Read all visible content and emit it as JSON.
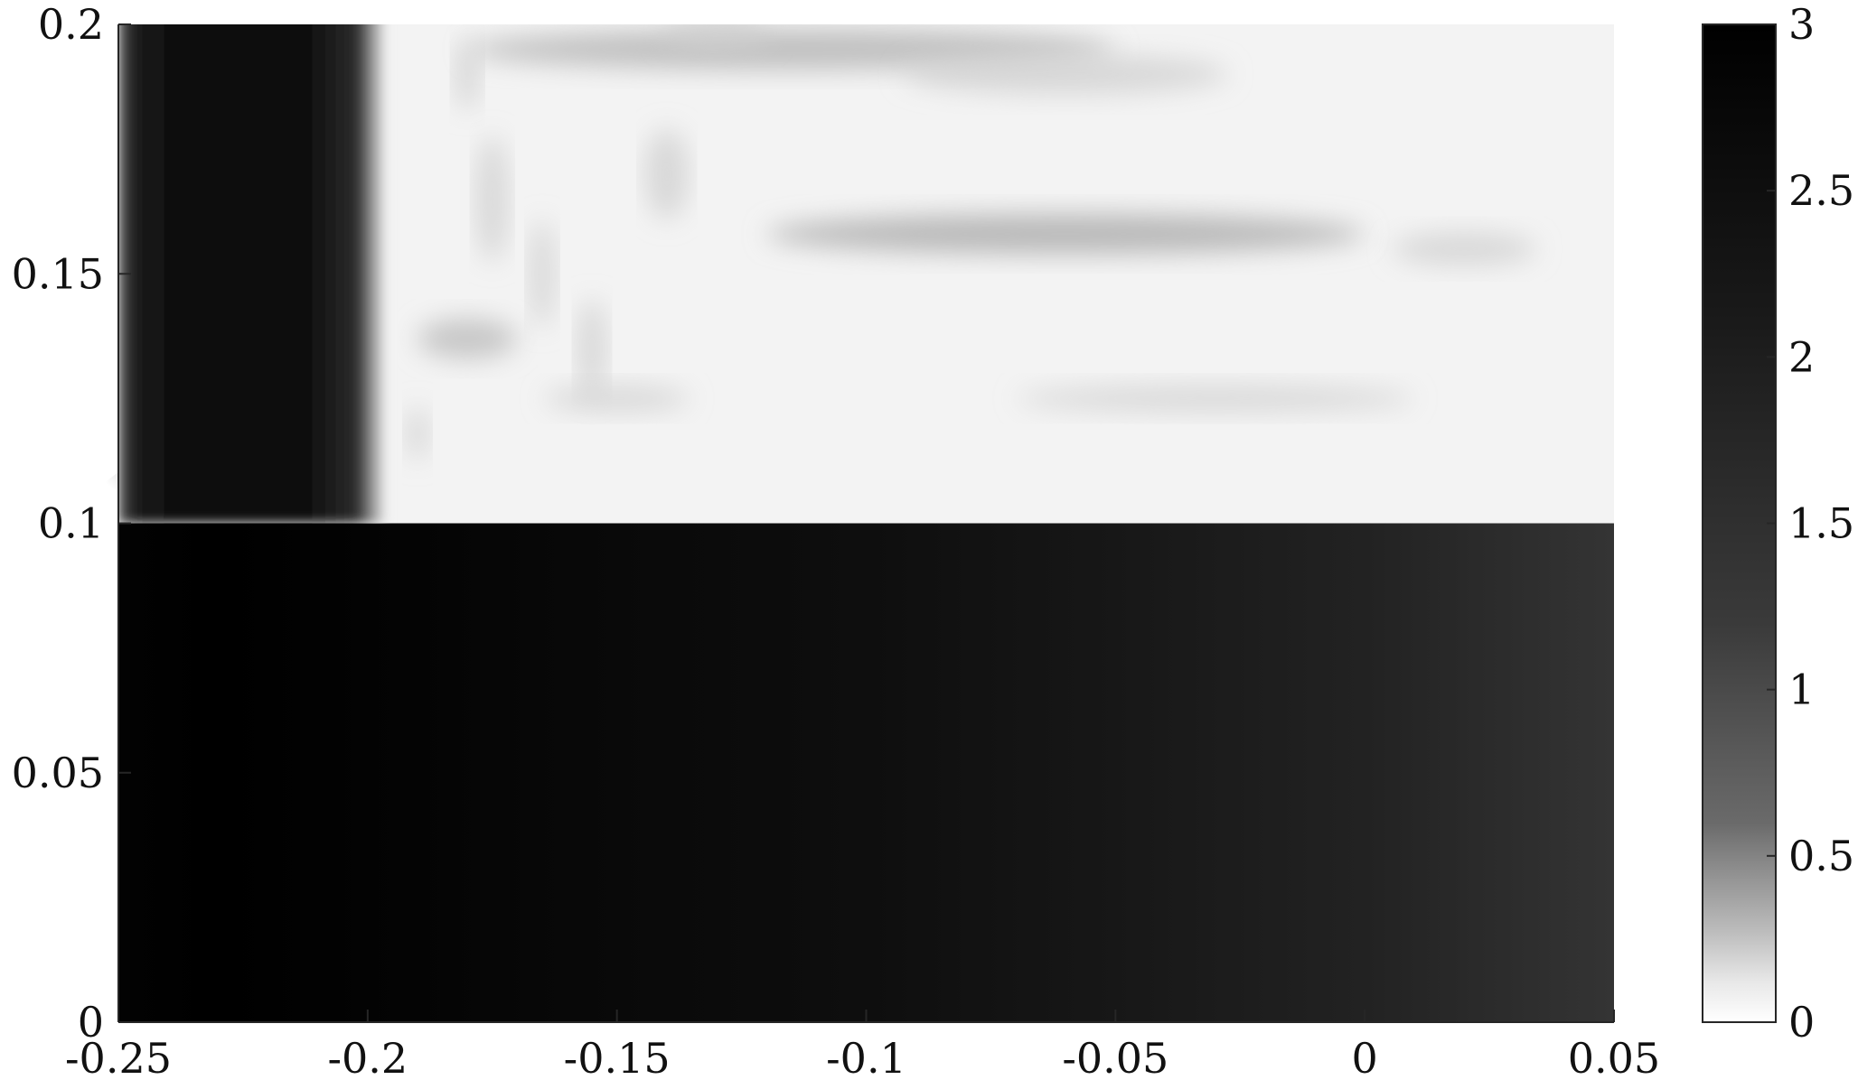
{
  "chart_data": {
    "type": "heatmap",
    "title": "",
    "xlabel": "",
    "ylabel": "",
    "xlim": [
      -0.25,
      0.05
    ],
    "ylim": [
      0,
      0.2
    ],
    "x_ticks": [
      {
        "value": -0.25,
        "label": "-0.25"
      },
      {
        "value": -0.2,
        "label": "-0.2"
      },
      {
        "value": -0.15,
        "label": "-0.15"
      },
      {
        "value": -0.1,
        "label": "-0.1"
      },
      {
        "value": -0.05,
        "label": "-0.05"
      },
      {
        "value": 0,
        "label": "0"
      },
      {
        "value": 0.05,
        "label": "0.05"
      }
    ],
    "y_ticks": [
      {
        "value": 0,
        "label": "0"
      },
      {
        "value": 0.05,
        "label": "0.05"
      },
      {
        "value": 0.1,
        "label": "0.1"
      },
      {
        "value": 0.15,
        "label": "0.15"
      },
      {
        "value": 0.2,
        "label": "0.2"
      }
    ],
    "colorbar": {
      "range": [
        0,
        3
      ],
      "colormap": "gray (white = 0, black = 3)",
      "ticks": [
        {
          "value": 0,
          "label": "0"
        },
        {
          "value": 0.5,
          "label": "0.5"
        },
        {
          "value": 1,
          "label": "1"
        },
        {
          "value": 1.5,
          "label": "1.5"
        },
        {
          "value": 2,
          "label": "2"
        },
        {
          "value": 2.5,
          "label": "2.5"
        },
        {
          "value": 3,
          "label": "3"
        }
      ]
    },
    "regions": [
      {
        "name": "lower",
        "y_range": [
          0,
          0.1
        ],
        "description": "smooth horizontal gradient",
        "profile": [
          {
            "x": -0.25,
            "value": 2.7
          },
          {
            "x": -0.23,
            "value": 3.0
          },
          {
            "x": -0.2,
            "value": 2.6
          },
          {
            "x": -0.15,
            "value": 2.35
          },
          {
            "x": -0.1,
            "value": 2.2
          },
          {
            "x": -0.05,
            "value": 2.0
          },
          {
            "x": 0,
            "value": 1.8
          },
          {
            "x": 0.05,
            "value": 1.55
          }
        ]
      },
      {
        "name": "upper",
        "y_range": [
          0.1,
          0.2
        ],
        "description": "dark column near x=-0.23 with low-valued banded ripples to the right",
        "dark_column": {
          "x_range": [
            -0.25,
            -0.2
          ],
          "value": 3.0
        },
        "background_value": 0.1,
        "bands": [
          {
            "y": 0.195,
            "x_range": [
              -0.18,
              -0.05
            ],
            "value": 0.45
          },
          {
            "y": 0.158,
            "x_range": [
              -0.12,
              0.0
            ],
            "value": 0.5
          },
          {
            "y": 0.137,
            "x_range": [
              -0.19,
              -0.17
            ],
            "value": 0.4
          }
        ]
      }
    ],
    "grid": false,
    "legend": "none"
  }
}
